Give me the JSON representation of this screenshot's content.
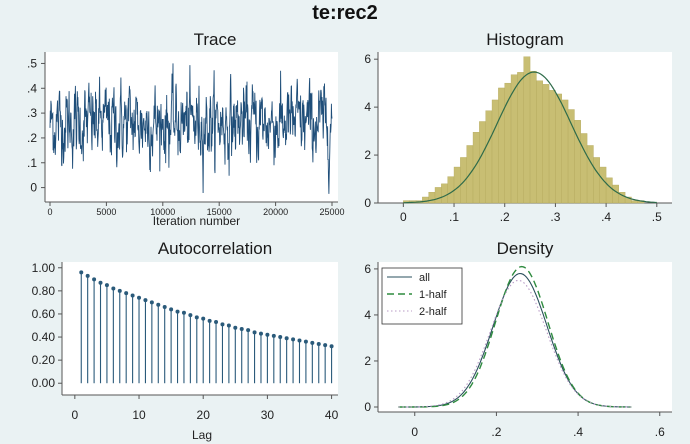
{
  "title": "te:rec2",
  "panels": {
    "trace": {
      "title": "Trace",
      "xlabel": "Iteration number"
    },
    "histogram": {
      "title": "Histogram"
    },
    "autocorrelation": {
      "title": "Autocorrelation",
      "xlabel": "Lag"
    },
    "density": {
      "title": "Density"
    }
  },
  "colors": {
    "background": "#eaf2f3",
    "plot_bg": "#ffffff",
    "trace_line": "#1f4e79",
    "hist_bar": "#c8be73",
    "hist_edge": "#b3a85b",
    "normal_curve": "#2e6b4a",
    "acf_line": "#2a5a7a",
    "density_all": "#2a4f5c",
    "density_first": "#2e8b3f",
    "density_second": "#b89bc6"
  },
  "chart_data": [
    {
      "type": "line",
      "title": "Trace",
      "xlabel": "Iteration number",
      "x_ticks": [
        0,
        5000,
        10000,
        15000,
        20000,
        25000
      ],
      "y_ticks": [
        0,
        0.1,
        0.2,
        0.3,
        0.4,
        0.5
      ],
      "y_tick_labels": [
        "0",
        ".1",
        ".2",
        ".3",
        ".4",
        ".5"
      ],
      "xlim": [
        0,
        25000
      ],
      "ylim": [
        -0.05,
        0.53
      ],
      "series": [
        {
          "mean": 0.26,
          "sd": 0.075,
          "min": -0.04,
          "max": 0.52,
          "n_iterations": 25000
        }
      ]
    },
    {
      "type": "bar",
      "title": "Histogram",
      "x_ticks": [
        0,
        0.1,
        0.2,
        0.3,
        0.4,
        0.5
      ],
      "x_tick_labels": [
        "0",
        ".1",
        ".2",
        ".3",
        ".4",
        ".5"
      ],
      "y_ticks": [
        0,
        2,
        4,
        6
      ],
      "xlim": [
        -0.05,
        0.53
      ],
      "ylim": [
        0,
        6.3
      ],
      "bin_width": 0.0125,
      "bins_start": 0.0,
      "values": [
        0.1,
        0.1,
        0.1,
        0.25,
        0.45,
        0.65,
        0.8,
        1.1,
        1.5,
        1.9,
        2.4,
        2.95,
        3.4,
        3.85,
        4.3,
        4.8,
        5.0,
        5.35,
        5.45,
        6.1,
        5.5,
        5.1,
        4.95,
        4.7,
        4.55,
        4.3,
        3.9,
        3.45,
        2.9,
        2.4,
        1.9,
        1.5,
        1.05,
        0.75,
        0.45,
        0.25,
        0.1,
        0.1
      ],
      "normal_curve": {
        "mean": 0.258,
        "sd": 0.073
      }
    },
    {
      "type": "bar",
      "title": "Autocorrelation",
      "xlabel": "Lag",
      "x_ticks": [
        0,
        10,
        20,
        30,
        40
      ],
      "y_ticks": [
        0,
        0.2,
        0.4,
        0.6,
        0.8,
        1.0
      ],
      "y_tick_labels": [
        "0.00",
        "0.20",
        "0.40",
        "0.60",
        "0.80",
        "1.00"
      ],
      "xlim": [
        -2,
        41
      ],
      "ylim": [
        -0.05,
        1.05
      ],
      "categories": [
        1,
        2,
        3,
        4,
        5,
        6,
        7,
        8,
        9,
        10,
        11,
        12,
        13,
        14,
        15,
        16,
        17,
        18,
        19,
        20,
        21,
        22,
        23,
        24,
        25,
        26,
        27,
        28,
        29,
        30,
        31,
        32,
        33,
        34,
        35,
        36,
        37,
        38,
        39,
        40
      ],
      "values": [
        0.96,
        0.93,
        0.9,
        0.87,
        0.85,
        0.82,
        0.8,
        0.78,
        0.76,
        0.74,
        0.72,
        0.7,
        0.68,
        0.66,
        0.64,
        0.62,
        0.61,
        0.59,
        0.57,
        0.56,
        0.54,
        0.53,
        0.51,
        0.5,
        0.48,
        0.47,
        0.46,
        0.44,
        0.43,
        0.42,
        0.41,
        0.4,
        0.39,
        0.38,
        0.37,
        0.36,
        0.35,
        0.34,
        0.33,
        0.32
      ]
    },
    {
      "type": "line",
      "title": "Density",
      "x_ticks": [
        0,
        0.2,
        0.4,
        0.6
      ],
      "x_tick_labels": [
        "0",
        ".2",
        ".4",
        ".6"
      ],
      "y_ticks": [
        0,
        2,
        4,
        6
      ],
      "xlim": [
        -0.09,
        0.63
      ],
      "ylim": [
        0,
        6.3
      ],
      "legend_position": "top-left",
      "series": [
        {
          "name": "all",
          "style": "solid",
          "mean": 0.258,
          "sd": 0.066,
          "peak": 5.8
        },
        {
          "name": "1-half",
          "style": "dashed",
          "mean": 0.262,
          "sd": 0.064,
          "peak": 6.1
        },
        {
          "name": "2-half",
          "style": "dotted",
          "mean": 0.254,
          "sd": 0.068,
          "peak": 5.5
        }
      ]
    }
  ]
}
